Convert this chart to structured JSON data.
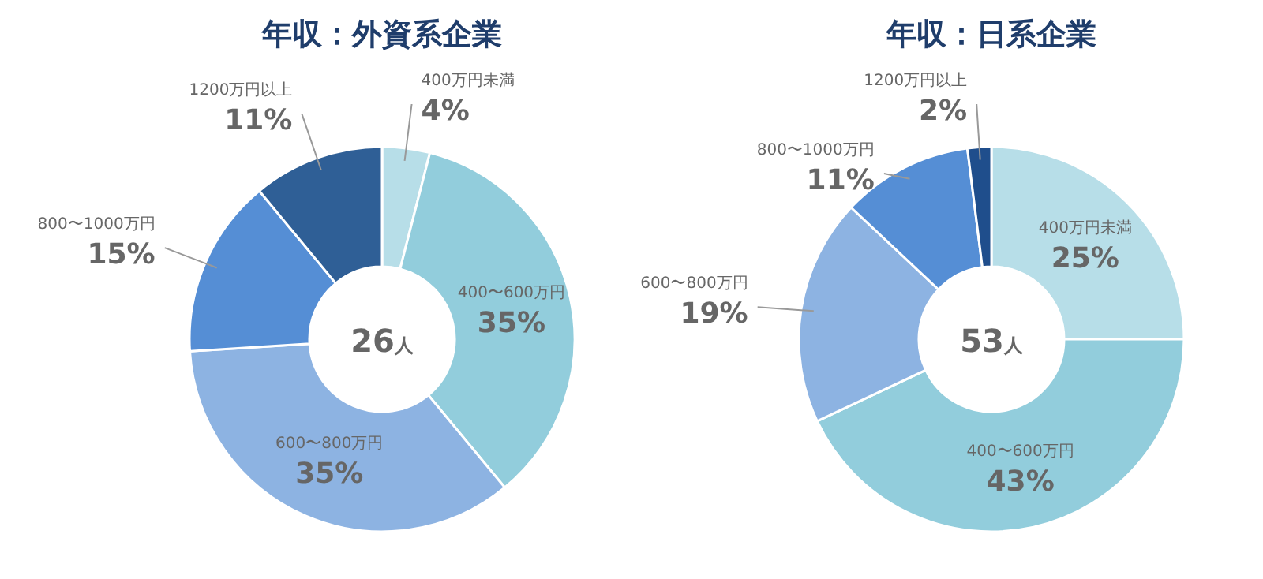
{
  "chart_data": [
    {
      "type": "donut",
      "title": "年収：外資系企業",
      "categories": [
        "400万円未満",
        "400〜600万円",
        "600〜800万円",
        "800〜1000万円",
        "1200万円以上"
      ],
      "values": [
        4,
        35,
        35,
        15,
        11
      ],
      "colors": [
        "#b7dee8",
        "#92cddc",
        "#8db3e2",
        "#558ed5",
        "#2f5f96"
      ],
      "value_labels": [
        "4%",
        "35%",
        "35%",
        "15%",
        "11%"
      ],
      "annotations": [
        "26人"
      ]
    },
    {
      "type": "donut",
      "title": "年収：日系企業",
      "categories": [
        "400万円未満",
        "400〜600万円",
        "600〜800万円",
        "800〜1000万円",
        "1200万円以上"
      ],
      "values": [
        25,
        43,
        19,
        11,
        2
      ],
      "colors": [
        "#b7dee8",
        "#92cddc",
        "#8db3e2",
        "#558ed5",
        "#1f4e8c"
      ],
      "value_labels": [
        "25%",
        "43%",
        "19%",
        "11%",
        "2%"
      ],
      "annotations": [
        "53人"
      ]
    }
  ]
}
